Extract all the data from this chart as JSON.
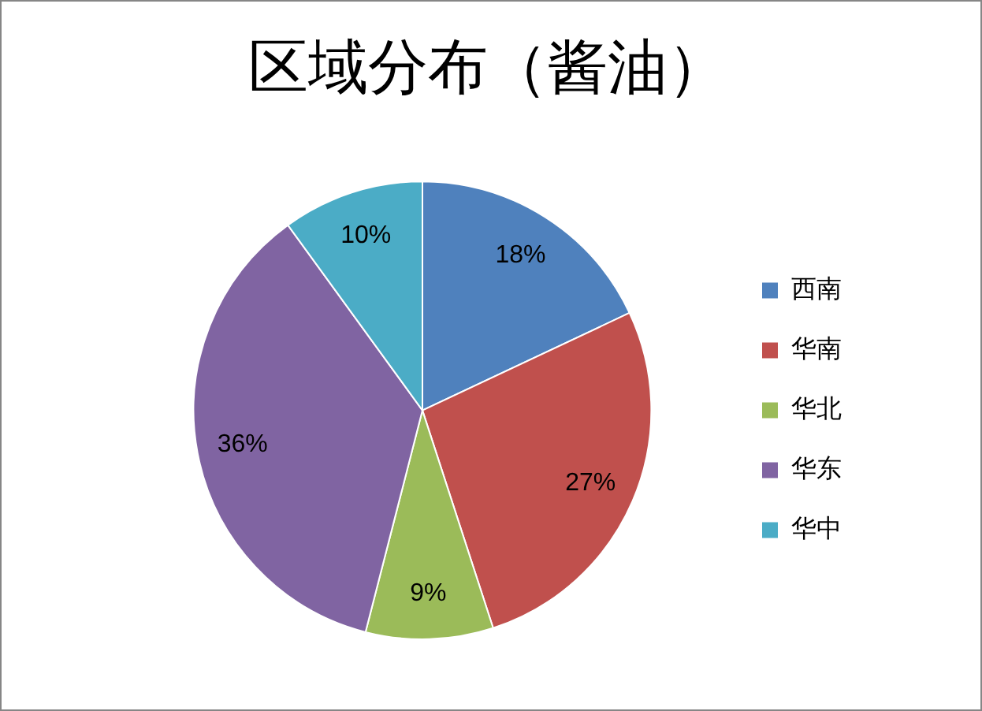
{
  "chart_data": {
    "type": "pie",
    "title": "区域分布（酱油）",
    "categories": [
      "西南",
      "华南",
      "华北",
      "华东",
      "华中"
    ],
    "values": [
      18,
      27,
      9,
      36,
      10
    ],
    "colors": [
      "#4f81bd",
      "#c0504d",
      "#9bbb59",
      "#8064a2",
      "#4bacc6"
    ],
    "value_labels": [
      "18%",
      "27%",
      "9%",
      "36%",
      "10%"
    ],
    "legend": "right"
  }
}
